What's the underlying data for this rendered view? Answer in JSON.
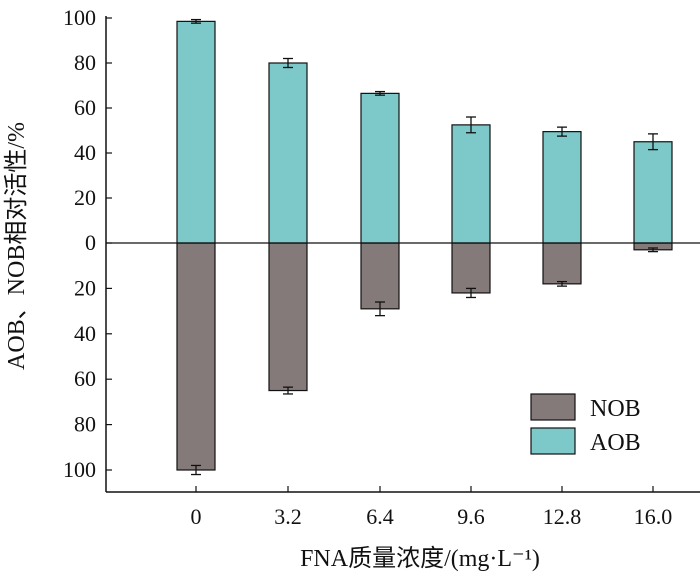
{
  "chart_data": {
    "type": "bar",
    "title": "",
    "xlabel": "FNA质量浓度/(mg·L⁻¹)",
    "ylabel": "AOB、NOB相对活性/%",
    "categories": [
      "0",
      "3.2",
      "6.4",
      "9.6",
      "12.8",
      "16.0"
    ],
    "ylim": [
      -100,
      100
    ],
    "yticks": [
      100,
      80,
      60,
      40,
      20,
      0,
      20,
      40,
      60,
      80,
      100
    ],
    "grid": false,
    "legend_position": "bottom-right",
    "series": [
      {
        "name": "NOB",
        "color": "#857a7a",
        "direction": "down",
        "values": [
          100,
          65,
          29,
          22,
          18,
          3
        ],
        "errors": [
          2,
          1.5,
          3,
          2,
          1,
          0.8
        ]
      },
      {
        "name": "AOB",
        "color": "#7dc8c9",
        "direction": "up",
        "values": [
          98.5,
          80,
          66.5,
          52.5,
          49.5,
          45
        ],
        "errors": [
          0.8,
          2,
          0.8,
          3.5,
          2,
          3.5
        ]
      }
    ]
  }
}
